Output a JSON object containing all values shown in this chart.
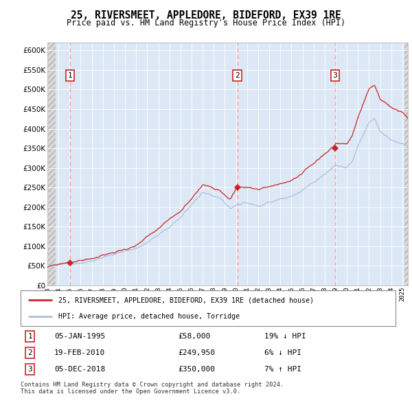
{
  "title": "25, RIVERSMEET, APPLEDORE, BIDEFORD, EX39 1RE",
  "subtitle": "Price paid vs. HM Land Registry's House Price Index (HPI)",
  "legend_line1": "25, RIVERSMEET, APPLEDORE, BIDEFORD, EX39 1RE (detached house)",
  "legend_line2": "HPI: Average price, detached house, Torridge",
  "footer1": "Contains HM Land Registry data © Crown copyright and database right 2024.",
  "footer2": "This data is licensed under the Open Government Licence v3.0.",
  "sales": [
    {
      "num": 1,
      "date": "05-JAN-1995",
      "price": 58000,
      "pct": "19%",
      "dir": "↓",
      "year": 1995.03
    },
    {
      "num": 2,
      "date": "19-FEB-2010",
      "price": 249950,
      "pct": "6%",
      "dir": "↓",
      "year": 2010.12
    },
    {
      "num": 3,
      "date": "05-DEC-2018",
      "price": 350000,
      "pct": "7%",
      "dir": "↑",
      "year": 2018.92
    }
  ],
  "ylim": [
    0,
    620000
  ],
  "yticks": [
    0,
    50000,
    100000,
    150000,
    200000,
    250000,
    300000,
    350000,
    400000,
    450000,
    500000,
    550000,
    600000
  ],
  "xlim": [
    1993.0,
    2025.5
  ],
  "hatch_end": 1993.75,
  "hatch_start_right": 2025.17,
  "xtick_years": [
    1993,
    1994,
    1995,
    1996,
    1997,
    1998,
    1999,
    2000,
    2001,
    2002,
    2003,
    2004,
    2005,
    2006,
    2007,
    2008,
    2009,
    2010,
    2011,
    2012,
    2013,
    2014,
    2015,
    2016,
    2017,
    2018,
    2019,
    2020,
    2021,
    2022,
    2023,
    2024,
    2025
  ],
  "hpi_color": "#aabfde",
  "price_color": "#cc2222",
  "marker_color": "#cc2222",
  "vline_color": "#ff9999",
  "bg_blue": "#dce8f5",
  "bg_hatch": "#d8d8d8",
  "grid_color": "#c8d8e8",
  "white": "#ffffff"
}
